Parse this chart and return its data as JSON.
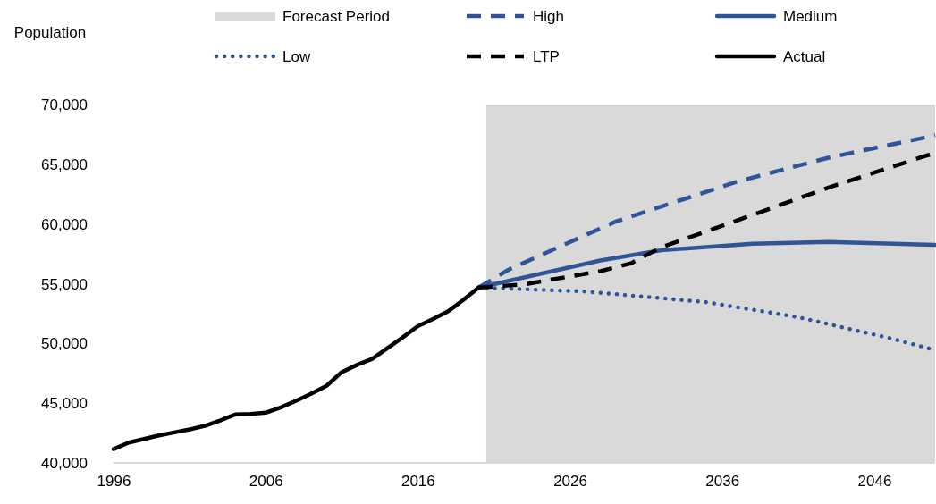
{
  "chart_data": {
    "type": "line",
    "ylabel": "Population",
    "xlim": [
      1996,
      2050
    ],
    "xticks": [
      1996,
      2006,
      2016,
      2026,
      2036,
      2046
    ],
    "ylim": [
      40000,
      70000
    ],
    "yticks": [
      {
        "value": 40000,
        "label": "40,000"
      },
      {
        "value": 45000,
        "label": "45,000"
      },
      {
        "value": 50000,
        "label": "50,000"
      },
      {
        "value": 55000,
        "label": "55,000"
      },
      {
        "value": 60000,
        "label": "60,000"
      },
      {
        "value": 65000,
        "label": "65,000"
      },
      {
        "value": 70000,
        "label": "70,000"
      }
    ],
    "grid": false,
    "legend": "top",
    "marker": "none",
    "bands": [
      {
        "axis": "x",
        "from": 2020.5,
        "to": 2050,
        "label": "Forecast Period",
        "color": "#d9d9d9"
      }
    ],
    "series": [
      {
        "name": "High",
        "color": "#2f5597",
        "line_style": "dashed",
        "x": [
          2020,
          2022,
          2029,
          2037,
          2043,
          2049,
          2050
        ],
        "values": [
          54680,
          56200,
          60200,
          63550,
          65550,
          67150,
          67450
        ]
      },
      {
        "name": "Medium",
        "color": "#2f5597",
        "line_style": "solid",
        "x": [
          2020,
          2028,
          2032,
          2038,
          2043,
          2050
        ],
        "values": [
          54680,
          56950,
          57800,
          58350,
          58500,
          58250
        ]
      },
      {
        "name": "Low",
        "color": "#2f5597",
        "line_style": "dotted",
        "x": [
          2020,
          2027,
          2035,
          2041,
          2047,
          2050
        ],
        "values": [
          54680,
          54350,
          53450,
          52200,
          50450,
          49450
        ]
      },
      {
        "name": "LTP",
        "color": "#000000",
        "line_style": "dashed",
        "x": [
          2020,
          2023,
          2028,
          2030,
          2032,
          2037,
          2043,
          2049,
          2050
        ],
        "values": [
          54680,
          54950,
          56050,
          56700,
          58050,
          60300,
          63050,
          65550,
          65950
        ]
      },
      {
        "name": "Actual",
        "color": "#000000",
        "line_style": "solid",
        "x": [
          1996,
          1997,
          1998,
          1999,
          2000,
          2001,
          2002,
          2003,
          2004,
          2005,
          2006,
          2007,
          2008,
          2009,
          2010,
          2011,
          2012,
          2013,
          2014,
          2015,
          2016,
          2017,
          2018,
          2019,
          2020
        ],
        "values": [
          41150,
          41700,
          42000,
          42300,
          42550,
          42800,
          43100,
          43550,
          44050,
          44100,
          44200,
          44650,
          45200,
          45800,
          46450,
          47600,
          48200,
          48700,
          49600,
          50500,
          51450,
          52050,
          52700,
          53650,
          54680
        ]
      }
    ]
  }
}
